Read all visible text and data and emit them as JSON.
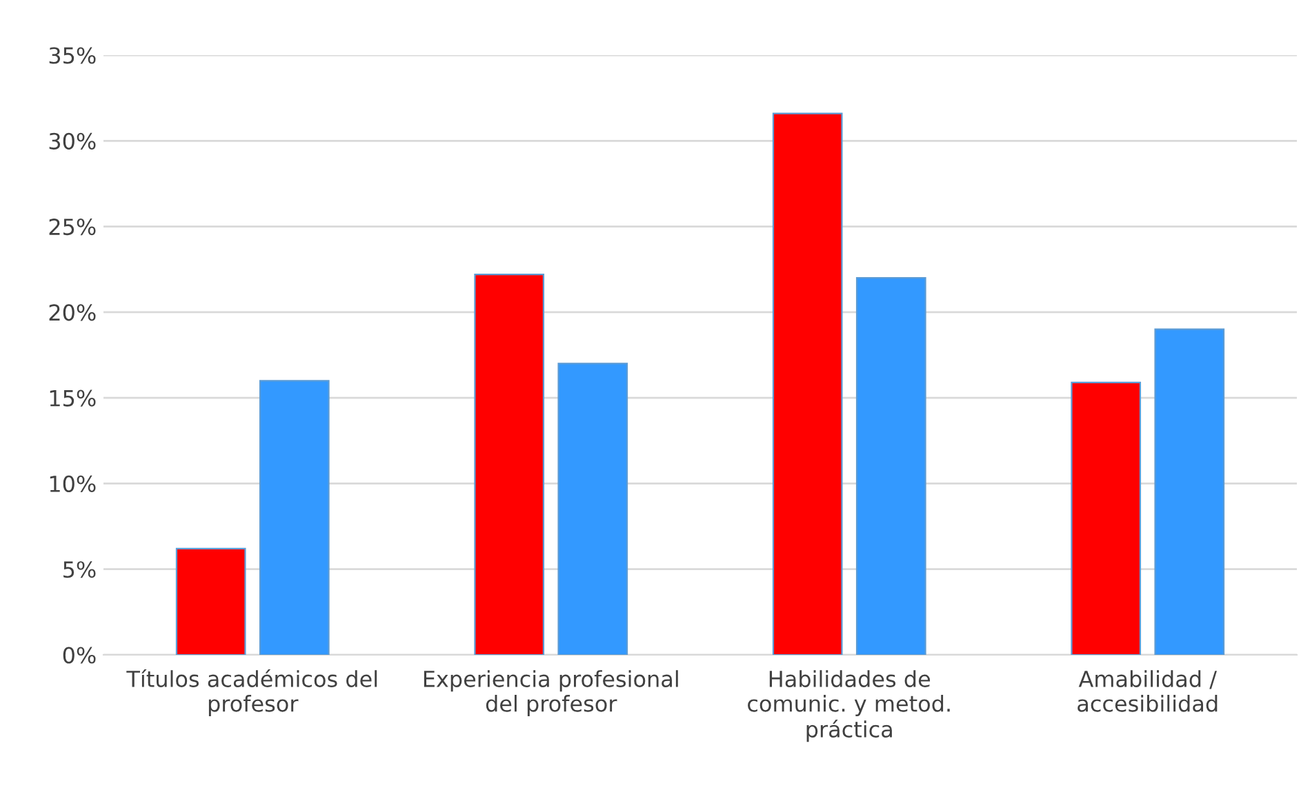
{
  "chart_data": {
    "type": "bar",
    "categories": [
      "Títulos académicos del\nprofesor",
      "Experiencia profesional\ndel profesor",
      "Habilidades de\ncomunic. y metod.\npráctica",
      "Amabilidad /\naccesibilidad"
    ],
    "series": [
      {
        "color": "#ff0000",
        "values": [
          6.2,
          22.2,
          31.6,
          15.9
        ]
      },
      {
        "color": "#3399ff",
        "values": [
          16.0,
          17.0,
          22.0,
          19.0
        ]
      }
    ],
    "ylim": [
      0,
      35
    ],
    "yticks": [
      {
        "value": 0,
        "label": "0%"
      },
      {
        "value": 5,
        "label": "5%"
      },
      {
        "value": 10,
        "label": "10%"
      },
      {
        "value": 15,
        "label": "15%"
      },
      {
        "value": 20,
        "label": "20%"
      },
      {
        "value": 25,
        "label": "25%"
      },
      {
        "value": 30,
        "label": "30%"
      },
      {
        "value": 35,
        "label": "35%"
      }
    ],
    "grid": "y",
    "legend": false
  }
}
